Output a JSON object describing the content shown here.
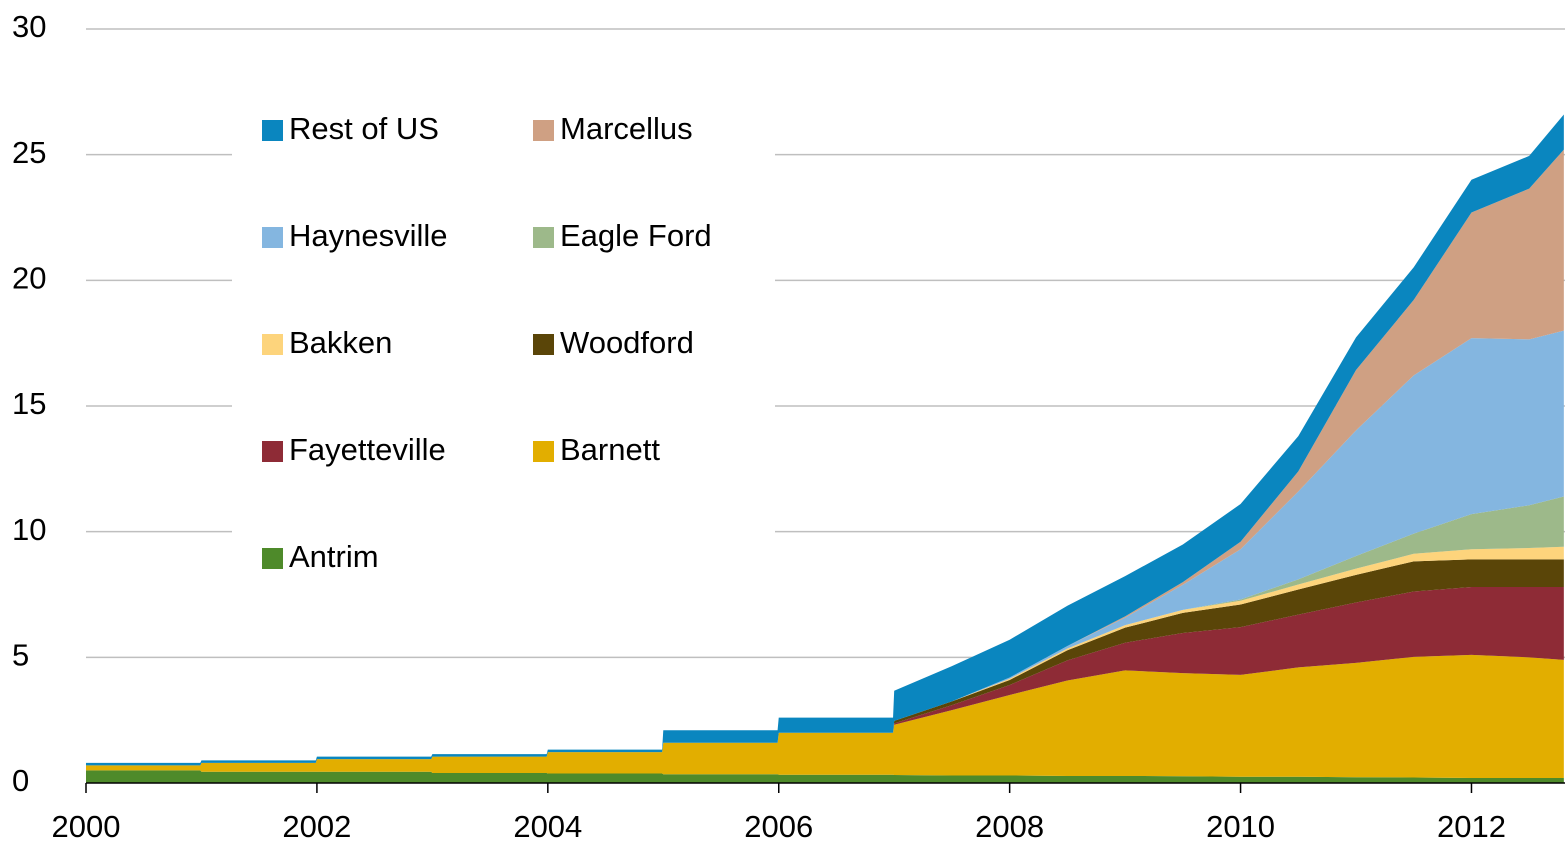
{
  "chart_data": {
    "type": "stacked_area",
    "x": [
      2000,
      2000.99,
      2001,
      2001.99,
      2002,
      2002.99,
      2003,
      2003.99,
      2004,
      2004.99,
      2005,
      2005.99,
      2006,
      2006.99,
      2007,
      2007.5,
      2008,
      2008.5,
      2009,
      2009.5,
      2010,
      2010.5,
      2011,
      2011.5,
      2012,
      2012.5,
      2012.8
    ],
    "series": [
      {
        "name": "Antrim",
        "color": "#4e8a2a",
        "values": [
          0.5,
          0.5,
          0.45,
          0.45,
          0.45,
          0.45,
          0.4,
          0.4,
          0.38,
          0.38,
          0.35,
          0.35,
          0.33,
          0.33,
          0.32,
          0.3,
          0.3,
          0.28,
          0.28,
          0.27,
          0.25,
          0.25,
          0.23,
          0.22,
          0.2,
          0.2,
          0.2
        ]
      },
      {
        "name": "Barnett",
        "color": "#e2ae00",
        "values": [
          0.2,
          0.2,
          0.35,
          0.35,
          0.5,
          0.5,
          0.65,
          0.65,
          0.85,
          0.85,
          1.25,
          1.25,
          1.67,
          1.67,
          2.0,
          2.6,
          3.2,
          3.8,
          4.2,
          4.1,
          4.05,
          4.35,
          4.55,
          4.8,
          4.9,
          4.8,
          4.7
        ]
      },
      {
        "name": "Fayetteville",
        "color": "#8e2b36",
        "values": [
          0,
          0,
          0,
          0,
          0,
          0,
          0,
          0,
          0,
          0,
          0,
          0,
          0,
          0,
          0.05,
          0.2,
          0.4,
          0.8,
          1.1,
          1.6,
          1.9,
          2.1,
          2.4,
          2.6,
          2.7,
          2.8,
          2.9
        ]
      },
      {
        "name": "Woodford",
        "color": "#5a4508",
        "values": [
          0,
          0,
          0,
          0,
          0,
          0,
          0,
          0,
          0,
          0,
          0,
          0,
          0,
          0,
          0.1,
          0.15,
          0.2,
          0.4,
          0.6,
          0.8,
          0.9,
          1.0,
          1.1,
          1.2,
          1.1,
          1.1,
          1.1
        ]
      },
      {
        "name": "Bakken",
        "color": "#fdd47c",
        "values": [
          0,
          0,
          0,
          0,
          0,
          0,
          0,
          0,
          0,
          0,
          0,
          0,
          0,
          0,
          0,
          0,
          0.05,
          0.07,
          0.1,
          0.12,
          0.15,
          0.2,
          0.25,
          0.3,
          0.4,
          0.45,
          0.5
        ]
      },
      {
        "name": "Eagle Ford",
        "color": "#9db98a",
        "values": [
          0,
          0,
          0,
          0,
          0,
          0,
          0,
          0,
          0,
          0,
          0,
          0,
          0,
          0,
          0,
          0,
          0,
          0,
          0,
          0,
          0.05,
          0.2,
          0.5,
          0.8,
          1.4,
          1.7,
          2.0
        ]
      },
      {
        "name": "Haynesville",
        "color": "#84b6e0",
        "values": [
          0,
          0,
          0,
          0,
          0,
          0,
          0,
          0,
          0,
          0,
          0,
          0,
          0,
          0,
          0,
          0,
          0.05,
          0.1,
          0.3,
          1.0,
          2.0,
          3.5,
          5.0,
          6.3,
          7.0,
          6.6,
          6.6
        ]
      },
      {
        "name": "Marcellus",
        "color": "#cfa083",
        "values": [
          0,
          0,
          0,
          0,
          0,
          0,
          0,
          0,
          0,
          0,
          0,
          0,
          0,
          0,
          0,
          0,
          0,
          0,
          0.05,
          0.1,
          0.3,
          0.8,
          2.4,
          3.0,
          5.0,
          6.0,
          7.2
        ]
      },
      {
        "name": "Rest of US",
        "color": "#0a86bf",
        "values": [
          0.1,
          0.1,
          0.1,
          0.1,
          0.1,
          0.1,
          0.1,
          0.1,
          0.1,
          0.1,
          0.5,
          0.5,
          0.6,
          0.6,
          1.2,
          1.4,
          1.5,
          1.6,
          1.6,
          1.5,
          1.5,
          1.4,
          1.3,
          1.3,
          1.3,
          1.3,
          1.4
        ]
      }
    ],
    "xlim": [
      2000,
      2012.81
    ],
    "xticks": [
      2000,
      2002,
      2004,
      2006,
      2008,
      2010,
      2012
    ],
    "ylim": [
      0,
      30
    ],
    "yticks": [
      0,
      5,
      10,
      15,
      20,
      25,
      30
    ],
    "grid": true,
    "legend": "upper left"
  }
}
